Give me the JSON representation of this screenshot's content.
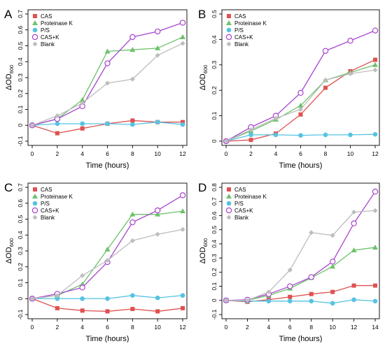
{
  "legend": {
    "cas": "CAS",
    "proteinase_k": "Proteinase K",
    "ps": "P/S",
    "cas_k": "CAS+K",
    "blank": "Blank"
  },
  "series_styles": {
    "CAS": {
      "color": "#e05050",
      "marker": "square"
    },
    "Proteinase K": {
      "color": "#6cc26a",
      "marker": "triangle"
    },
    "P/S": {
      "color": "#55c3e3",
      "marker": "circle"
    },
    "CAS+K": {
      "color": "#a744cf",
      "marker": "open-circle"
    },
    "Blank": {
      "color": "#bdbdbd",
      "marker": "diamond"
    }
  },
  "chart_data": [
    {
      "panel_label": "A",
      "type": "line",
      "xlabel": "Time (hours)",
      "ylabel": "ΔOD",
      "ylabel_subscript": "600",
      "xlim": [
        0,
        12
      ],
      "ylim": [
        -0.1,
        0.7
      ],
      "xticks": [
        0,
        2,
        4,
        6,
        8,
        10,
        12
      ],
      "yticks": [
        "-0.1",
        "0",
        "0.1",
        "0.2",
        "0.3",
        "0.4",
        "0.5",
        "0.6",
        "0.7"
      ],
      "legend_position": "top-left",
      "x": [
        0,
        2,
        4,
        6,
        8,
        10,
        12
      ],
      "series": [
        {
          "name": "CAS",
          "values": [
            0.0,
            -0.05,
            -0.02,
            0.01,
            0.03,
            0.02,
            0.02
          ]
        },
        {
          "name": "Proteinase K",
          "values": [
            0.0,
            0.04,
            0.16,
            0.465,
            0.475,
            0.485,
            0.555
          ]
        },
        {
          "name": "P/S",
          "values": [
            0.0,
            0.01,
            0.01,
            0.01,
            0.005,
            0.02,
            0.005
          ]
        },
        {
          "name": "CAS+K",
          "values": [
            0.0,
            0.04,
            0.12,
            0.39,
            0.555,
            0.59,
            0.645
          ]
        },
        {
          "name": "Blank",
          "values": [
            0.0,
            0.06,
            0.14,
            0.265,
            0.29,
            0.44,
            0.515
          ]
        }
      ]
    },
    {
      "panel_label": "B",
      "type": "line",
      "xlabel": "Time (hours)",
      "ylabel": "ΔOD",
      "ylabel_subscript": "600",
      "xlim": [
        0,
        12
      ],
      "ylim": [
        0,
        0.5
      ],
      "xticks": [
        0,
        2,
        4,
        6,
        8,
        10,
        12
      ],
      "yticks": [
        "0",
        "0.1",
        "0.2",
        "0.3",
        "0.4",
        "0.5"
      ],
      "legend_position": "top-left",
      "x": [
        0,
        2,
        4,
        6,
        8,
        10,
        12
      ],
      "series": [
        {
          "name": "CAS",
          "values": [
            0.0,
            0.005,
            0.03,
            0.105,
            0.21,
            0.275,
            0.32
          ]
        },
        {
          "name": "Proteinase K",
          "values": [
            0.0,
            0.04,
            0.085,
            0.14,
            0.24,
            0.27,
            0.3
          ]
        },
        {
          "name": "P/S",
          "values": [
            0.0,
            0.025,
            0.025,
            0.023,
            0.025,
            0.025,
            0.027
          ]
        },
        {
          "name": "CAS+K",
          "values": [
            0.0,
            0.055,
            0.1,
            0.19,
            0.355,
            0.395,
            0.435
          ]
        },
        {
          "name": "Blank",
          "values": [
            0.0,
            0.045,
            0.09,
            0.125,
            0.24,
            0.265,
            0.28
          ]
        }
      ]
    },
    {
      "panel_label": "C",
      "type": "line",
      "xlabel": "Time (hours)",
      "ylabel": "ΔOD",
      "ylabel_subscript": "600",
      "xlim": [
        0,
        12
      ],
      "ylim": [
        -0.1,
        0.7
      ],
      "xticks": [
        0,
        2,
        4,
        6,
        8,
        10,
        12
      ],
      "yticks": [
        "-0.1",
        "0",
        "0.1",
        "0.2",
        "0.3",
        "0.4",
        "0.5",
        "0.6",
        "0.7"
      ],
      "legend_position": "top-left",
      "x": [
        0,
        2,
        4,
        6,
        8,
        10,
        12
      ],
      "series": [
        {
          "name": "CAS",
          "values": [
            0.0,
            -0.06,
            -0.075,
            -0.08,
            -0.065,
            -0.08,
            -0.06
          ]
        },
        {
          "name": "Proteinase K",
          "values": [
            0.0,
            0.02,
            0.09,
            0.31,
            0.53,
            0.53,
            0.55
          ]
        },
        {
          "name": "P/S",
          "values": [
            0.0,
            0.0,
            0.0,
            0.0,
            0.02,
            0.005,
            0.02
          ]
        },
        {
          "name": "CAS+K",
          "values": [
            0.0,
            0.03,
            0.07,
            0.23,
            0.48,
            0.555,
            0.65
          ]
        },
        {
          "name": "Blank",
          "values": [
            0.0,
            0.02,
            0.145,
            0.24,
            0.365,
            0.405,
            0.435
          ]
        }
      ]
    },
    {
      "panel_label": "D",
      "type": "line",
      "xlabel": "Time (hours)",
      "ylabel": "ΔOD",
      "ylabel_subscript": "600",
      "xlim": [
        0,
        14
      ],
      "ylim": [
        -0.1,
        0.8
      ],
      "xticks": [
        0,
        2,
        4,
        6,
        8,
        10,
        12,
        14
      ],
      "yticks": [
        "-0.1",
        "0",
        "0.1",
        "0.2",
        "0.3",
        "0.4",
        "0.5",
        "0.6",
        "0.7",
        "0.8"
      ],
      "legend_position": "top-left",
      "x": [
        0,
        2,
        4,
        6,
        8,
        10,
        12,
        14
      ],
      "series": [
        {
          "name": "CAS",
          "values": [
            0.0,
            -0.01,
            0.005,
            0.025,
            0.045,
            0.06,
            0.105,
            0.105
          ]
        },
        {
          "name": "Proteinase K",
          "values": [
            0.0,
            0.0,
            0.035,
            0.085,
            0.16,
            0.24,
            0.355,
            0.375
          ]
        },
        {
          "name": "P/S",
          "values": [
            0.0,
            -0.005,
            -0.005,
            -0.005,
            -0.005,
            -0.02,
            0.005,
            -0.005
          ]
        },
        {
          "name": "CAS+K",
          "values": [
            0.0,
            0.005,
            0.045,
            0.1,
            0.165,
            0.275,
            0.545,
            0.77
          ]
        },
        {
          "name": "Blank",
          "values": [
            0.0,
            0.0,
            0.06,
            0.215,
            0.48,
            0.46,
            0.625,
            0.635
          ]
        }
      ]
    }
  ]
}
